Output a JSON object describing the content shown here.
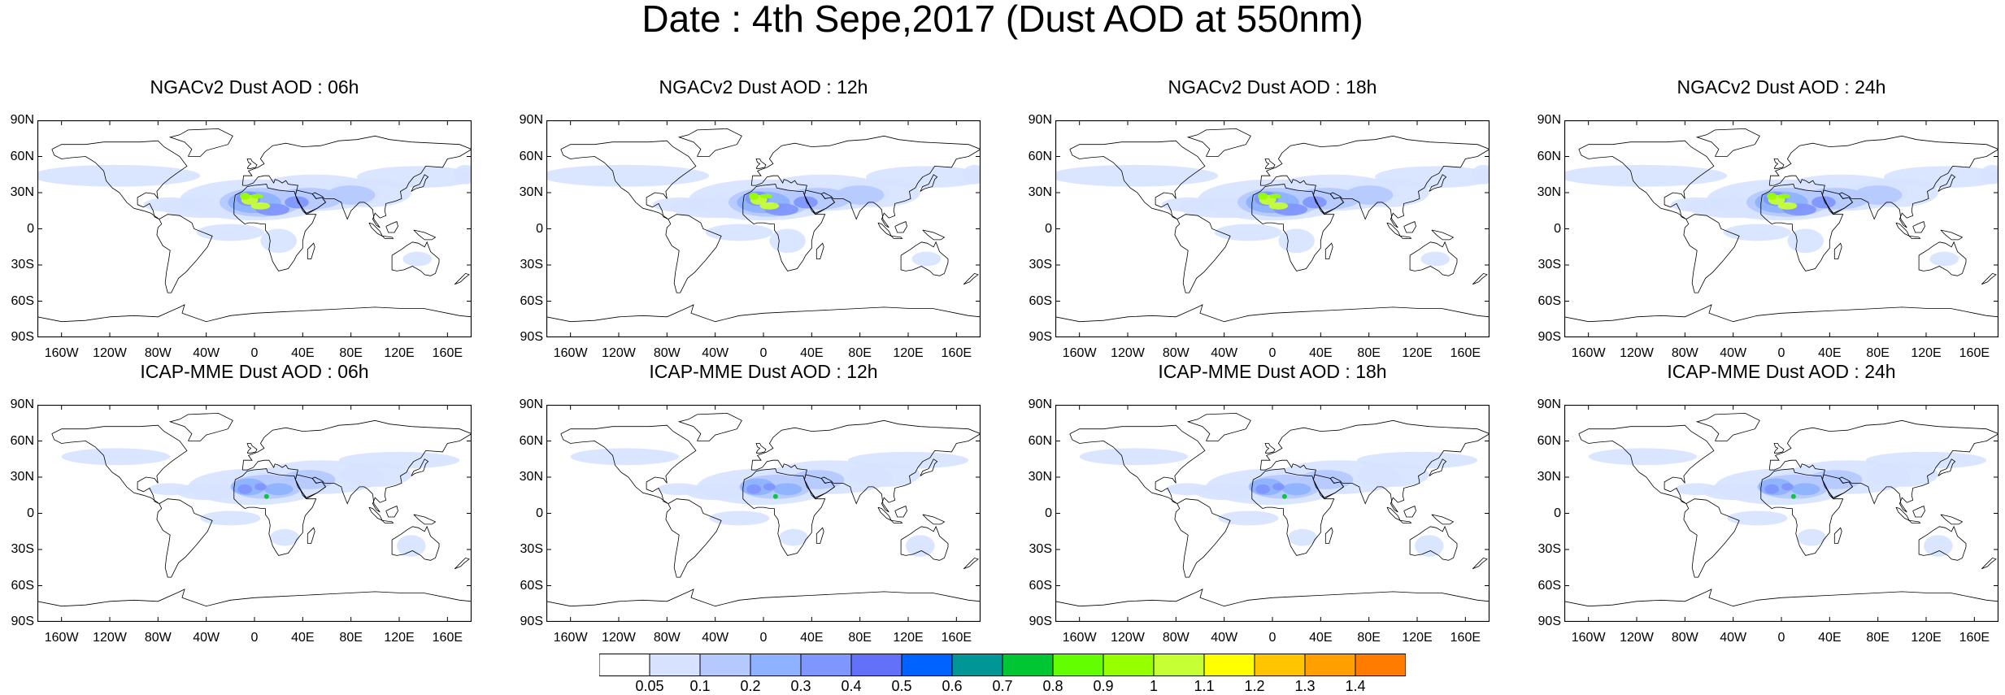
{
  "figure": {
    "title": "Date : 4th Sepe,2017 (Dust AOD at 550nm)"
  },
  "panels": [
    {
      "title": "NGACv2 Dust AOD : 06h",
      "model": "NGACv2"
    },
    {
      "title": "NGACv2 Dust AOD : 12h",
      "model": "NGACv2"
    },
    {
      "title": "NGACv2 Dust AOD : 18h",
      "model": "NGACv2"
    },
    {
      "title": "NGACv2 Dust AOD : 24h",
      "model": "NGACv2"
    },
    {
      "title": "ICAP-MME Dust AOD : 06h",
      "model": "ICAP-MME"
    },
    {
      "title": "ICAP-MME Dust AOD : 12h",
      "model": "ICAP-MME"
    },
    {
      "title": "ICAP-MME Dust AOD : 18h",
      "model": "ICAP-MME"
    },
    {
      "title": "ICAP-MME Dust AOD : 24h",
      "model": "ICAP-MME"
    }
  ],
  "axes": {
    "lat_ticks": [
      "90N",
      "60N",
      "30N",
      "0",
      "30S",
      "60S",
      "90S"
    ],
    "lon_ticks": [
      "160W",
      "120W",
      "80W",
      "40W",
      "0",
      "40E",
      "80E",
      "120E",
      "160E"
    ]
  },
  "colorbar": {
    "tick_labels": [
      "0.05",
      "0.1",
      "0.2",
      "0.3",
      "0.4",
      "0.5",
      "0.6",
      "0.7",
      "0.8",
      "0.9",
      "1",
      "1.1",
      "1.2",
      "1.3",
      "1.4"
    ],
    "colors": [
      "#ffffff",
      "#d6e2ff",
      "#b5c9ff",
      "#8eb2ff",
      "#7f96ff",
      "#6370f8",
      "#0063ff",
      "#009696",
      "#00c633",
      "#63ff00",
      "#96ff00",
      "#c6ff33",
      "#ffff00",
      "#ffc600",
      "#ffa000",
      "#ff7c00",
      "#ff1900"
    ]
  }
}
